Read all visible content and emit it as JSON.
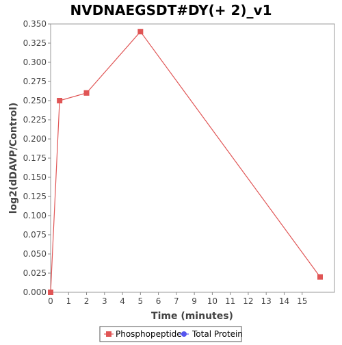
{
  "chart_data": {
    "type": "line",
    "title": "NVDNAEGSDT#DY(+ 2)_v1",
    "xlabel": "Time (minutes)",
    "ylabel": "log2(dDAVP/Control)",
    "x_tick_labels": [
      "0",
      "1",
      "2",
      "3",
      "4",
      "5",
      "6",
      "7",
      "9",
      "10",
      "11",
      "12",
      "13",
      "14",
      "15"
    ],
    "y_ticks": [
      "0.000",
      "0.025",
      "0.050",
      "0.075",
      "0.100",
      "0.125",
      "0.150",
      "0.175",
      "0.200",
      "0.225",
      "0.250",
      "0.275",
      "0.300",
      "0.325",
      "0.350"
    ],
    "ylim": [
      0,
      0.35
    ],
    "grid": false,
    "legend_position": "bottom",
    "series": [
      {
        "name": "Phosphopeptide",
        "color": "#e05555",
        "marker": "square",
        "points": [
          {
            "x": 0,
            "y": 0.0
          },
          {
            "x": 0.5,
            "y": 0.25
          },
          {
            "x": 2,
            "y": 0.26
          },
          {
            "x": 5,
            "y": 0.34
          },
          {
            "x": 15,
            "y": 0.02
          }
        ]
      },
      {
        "name": "Total Protein",
        "color": "#5555ee",
        "marker": "circle",
        "points": []
      }
    ]
  }
}
